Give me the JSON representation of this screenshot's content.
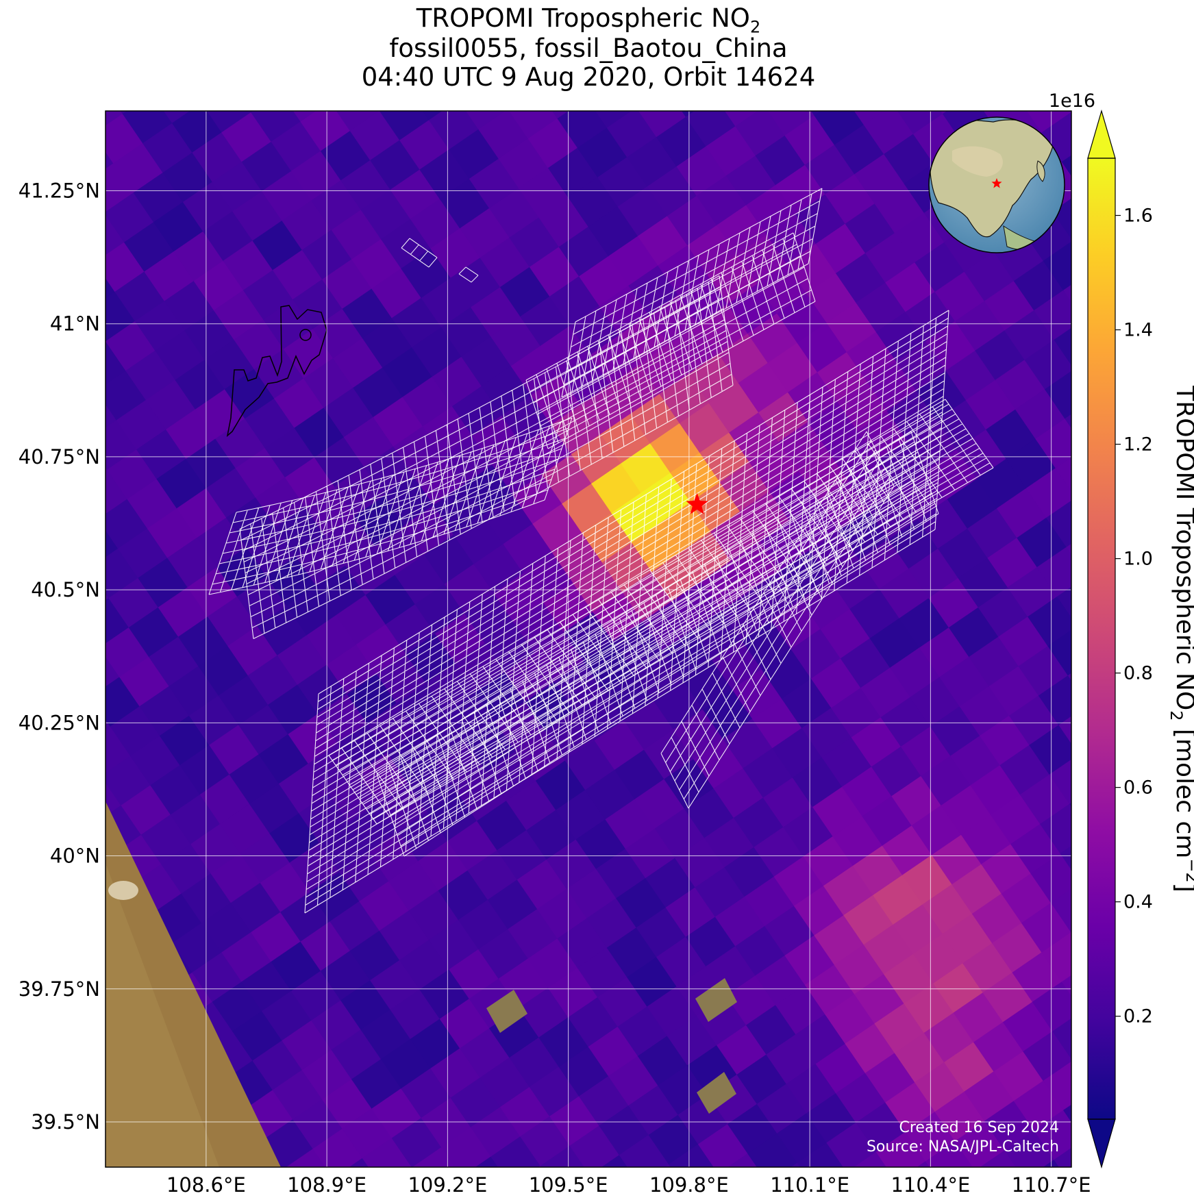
{
  "title": {
    "line1_prefix": "TROPOMI Tropospheric NO",
    "line1_sub": "2",
    "line2": "fossil0055, fossil_Baotou_China",
    "line3": "04:40 UTC 9 Aug 2020, Orbit 14624"
  },
  "map": {
    "lon_ticks": [
      {
        "value": 108.6,
        "label": "108.6°E"
      },
      {
        "value": 108.9,
        "label": "108.9°E"
      },
      {
        "value": 109.2,
        "label": "109.2°E"
      },
      {
        "value": 109.5,
        "label": "109.5°E"
      },
      {
        "value": 109.8,
        "label": "109.8°E"
      },
      {
        "value": 110.1,
        "label": "110.1°E"
      },
      {
        "value": 110.4,
        "label": "110.4°E"
      },
      {
        "value": 110.7,
        "label": "110.7°E"
      }
    ],
    "lat_ticks": [
      {
        "value": 41.25,
        "label": "41.25°N"
      },
      {
        "value": 41.0,
        "label": "41°N"
      },
      {
        "value": 40.75,
        "label": "40.75°N"
      },
      {
        "value": 40.5,
        "label": "40.5°N"
      },
      {
        "value": 40.25,
        "label": "40.25°N"
      },
      {
        "value": 40.0,
        "label": "40°N"
      },
      {
        "value": 39.75,
        "label": "39.75°N"
      },
      {
        "value": 39.5,
        "label": "39.5°N"
      }
    ],
    "lon_range": [
      108.35,
      110.75
    ],
    "lat_range": [
      39.415,
      41.4
    ],
    "target": {
      "name": "fossil_Baotou_China",
      "lon": 109.82,
      "lat": 40.66
    },
    "gridlines": true,
    "inset": "globe-centered-on-asia-with-target-star"
  },
  "colorbar": {
    "label_prefix": "TROPOMI Tropospheric NO",
    "label_sub": "2",
    "label_mid": " [molec cm",
    "label_sup": "−2",
    "label_suffix": "]",
    "multiplier": "1e16",
    "colormap": "plasma",
    "range": [
      0.02,
      1.7
    ],
    "ticks": [
      {
        "value": 0.2,
        "label": "0.2"
      },
      {
        "value": 0.4,
        "label": "0.4"
      },
      {
        "value": 0.6,
        "label": "0.6"
      },
      {
        "value": 0.8,
        "label": "0.8"
      },
      {
        "value": 1.0,
        "label": "1.0"
      },
      {
        "value": 1.2,
        "label": "1.2"
      },
      {
        "value": 1.4,
        "label": "1.4"
      },
      {
        "value": 1.6,
        "label": "1.6"
      }
    ],
    "extend": "both"
  },
  "credits": {
    "created": "Created 16 Sep 2024",
    "source": "Source: NASA/JPL-Caltech"
  },
  "colors": {
    "target_star": "#ff0000",
    "gridline": "#ffffff",
    "cell_outline": "#ffffff"
  }
}
